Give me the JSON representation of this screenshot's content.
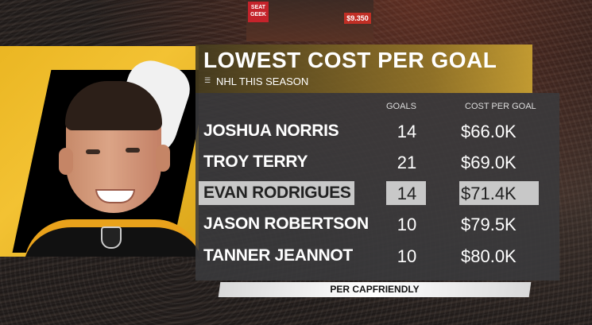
{
  "graphic": {
    "title": "LOWEST COST PER GOAL",
    "subtitle": "NHL THIS SEASON",
    "columns": {
      "goals": "GOALS",
      "cost": "COST PER GOAL"
    },
    "rows": [
      {
        "name": "JOSHUA NORRIS",
        "goals": "14",
        "cost": "$66.0K",
        "highlighted": false
      },
      {
        "name": "TROY TERRY",
        "goals": "21",
        "cost": "$69.0K",
        "highlighted": false
      },
      {
        "name": "EVAN RODRIGUES",
        "goals": "14",
        "cost": "$71.4K",
        "highlighted": true
      },
      {
        "name": "JASON ROBERTSON",
        "goals": "10",
        "cost": "$79.5K",
        "highlighted": false
      },
      {
        "name": "TANNER JEANNOT",
        "goals": "10",
        "cost": "$80.0K",
        "highlighted": false
      }
    ],
    "source": "PER CAPFRIENDLY"
  },
  "background": {
    "sponsor_sign": "SEAT GEEK",
    "price_sign": "$9.350"
  },
  "colors": {
    "title_bar": "#c8a030",
    "panel": "#3a3a3c",
    "highlight": "#c8c8c8",
    "team_gold": "#f3c233"
  },
  "icons": [
    "nhl-logo-icon",
    "list-icon"
  ]
}
